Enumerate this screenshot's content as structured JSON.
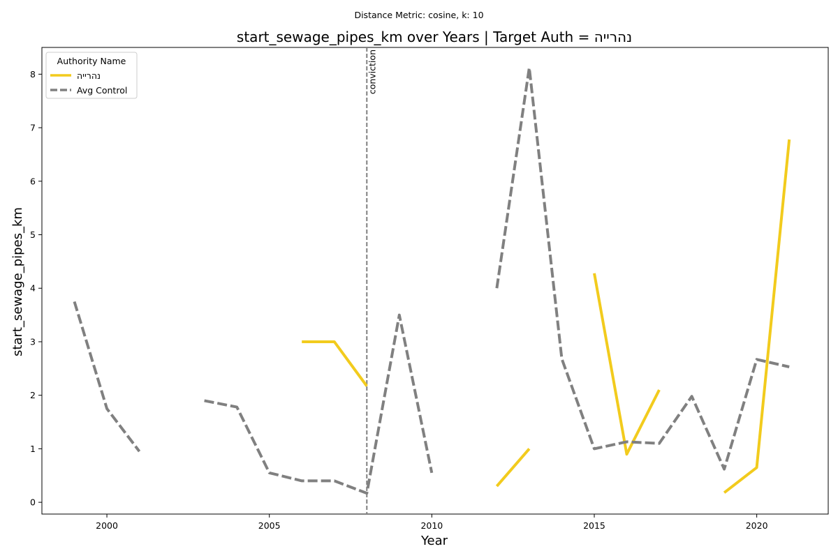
{
  "chart_data": {
    "type": "line",
    "suptitle": "Distance Metric: cosine, k: 10",
    "title": "start_sewage_pipes_km over Years | Target Auth = נהרייה",
    "xlabel": "Year",
    "ylabel": "start_sewage_pipes_km",
    "xlim": [
      1998.0,
      2022.2
    ],
    "ylim": [
      -0.22,
      8.5
    ],
    "x_ticks": [
      2000,
      2005,
      2010,
      2015,
      2020
    ],
    "y_ticks": [
      0,
      1,
      2,
      3,
      4,
      5,
      6,
      7,
      8
    ],
    "grid": false,
    "legend": {
      "title": "Authority Name",
      "placement": "top-left",
      "entries": [
        "נהרייה",
        "Avg Control"
      ]
    },
    "vline": {
      "x": 2008,
      "label": "conviction",
      "color": "#808080",
      "style": "dashed"
    },
    "series": [
      {
        "name": "נהרייה",
        "color": "#f2cb1d",
        "style": "solid",
        "segments": [
          [
            [
              2006,
              3.0
            ],
            [
              2007,
              3.0
            ],
            [
              2008,
              2.17
            ]
          ],
          [
            [
              2012,
              0.3
            ],
            [
              2013,
              1.0
            ]
          ],
          [
            [
              2015,
              4.28
            ],
            [
              2016,
              0.9
            ],
            [
              2017,
              2.1
            ]
          ],
          [
            [
              2019,
              0.18
            ],
            [
              2020,
              0.65
            ],
            [
              2021,
              6.78
            ]
          ]
        ]
      },
      {
        "name": "Avg Control",
        "color": "#808080",
        "style": "dashed",
        "segments": [
          [
            [
              1999,
              3.75
            ],
            [
              2000,
              1.75
            ],
            [
              2001,
              0.95
            ]
          ],
          [
            [
              2003,
              1.9
            ],
            [
              2004,
              1.78
            ],
            [
              2005,
              0.55
            ],
            [
              2006,
              0.4
            ],
            [
              2007,
              0.4
            ],
            [
              2008,
              0.17
            ],
            [
              2009,
              3.5
            ],
            [
              2010,
              0.55
            ]
          ],
          [
            [
              2012,
              4.0
            ],
            [
              2013,
              8.12
            ],
            [
              2014,
              2.68
            ],
            [
              2015,
              1.0
            ],
            [
              2016,
              1.13
            ],
            [
              2017,
              1.1
            ],
            [
              2018,
              1.98
            ],
            [
              2019,
              0.62
            ],
            [
              2020,
              2.67
            ],
            [
              2021,
              2.53
            ]
          ]
        ]
      }
    ]
  }
}
